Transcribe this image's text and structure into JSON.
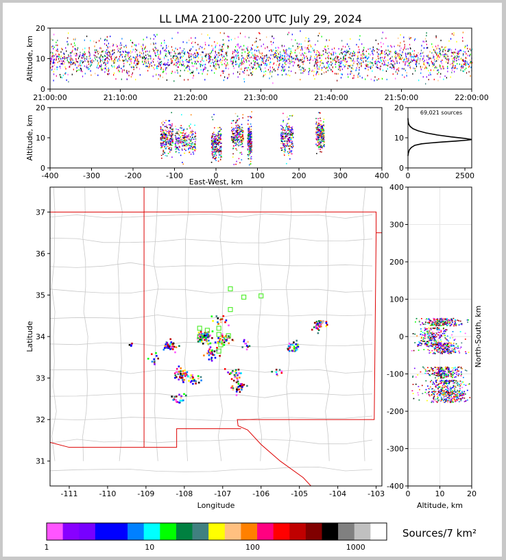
{
  "title": "LL LMA 2100-2200 UTC July 29, 2024",
  "chart_data": [
    {
      "type": "scatter",
      "panel": "altitude-vs-time",
      "ylabel": "Altitude, km",
      "ylim": [
        0,
        20
      ],
      "yticks": [
        "0",
        "10",
        "20"
      ],
      "xlim": [
        "21:00:00",
        "22:00:00"
      ],
      "xticks": [
        "21:00:00",
        "21:10:00",
        "21:20:00",
        "21:30:00",
        "21:40:00",
        "21:50:00",
        "22:00:00"
      ],
      "altitude_core_km": [
        5,
        15
      ],
      "altitude_peak_km": 10
    },
    {
      "type": "scatter",
      "panel": "altitude-vs-east-west",
      "xlabel": "East-West, km",
      "ylabel": "Altitude, km",
      "xlim": [
        -400,
        400
      ],
      "ylim": [
        0,
        20
      ],
      "xticks": [
        "-400",
        "-300",
        "-200",
        "-100",
        "0",
        "100",
        "200",
        "300",
        "400"
      ],
      "yticks": [
        "0",
        "10",
        "20"
      ],
      "clusters": [
        {
          "x_km": -120,
          "alt_km": 10,
          "halfwidth_km": 15
        },
        {
          "x_km": -75,
          "alt_km": 9,
          "halfwidth_km": 25
        },
        {
          "x_km": 0,
          "alt_km": 8,
          "halfwidth_km": 12
        },
        {
          "x_km": 50,
          "alt_km": 11,
          "halfwidth_km": 15
        },
        {
          "x_km": 80,
          "alt_km": 9,
          "halfwidth_km": 5
        },
        {
          "x_km": 170,
          "alt_km": 10,
          "halfwidth_km": 15
        },
        {
          "x_km": 250,
          "alt_km": 11,
          "halfwidth_km": 10
        }
      ]
    },
    {
      "type": "line",
      "panel": "altitude-histogram",
      "annotation": "69,021 sources",
      "xlim": [
        0,
        2800
      ],
      "ylim": [
        0,
        20
      ],
      "xticks": [
        "0",
        "2500"
      ],
      "yticks": [
        "0",
        "10",
        "20"
      ],
      "x": [
        0,
        20,
        60,
        150,
        300,
        600,
        1000,
        1500,
        2100,
        2600,
        2800,
        2500,
        1900,
        1300,
        800,
        450,
        220,
        90,
        30,
        8,
        0
      ],
      "y": [
        4,
        5,
        6,
        6.8,
        7.5,
        8,
        8.3,
        8.6,
        8.9,
        9.2,
        9.4,
        9.8,
        10.3,
        10.9,
        11.6,
        12.3,
        13,
        13.8,
        14.6,
        15.5,
        16.5
      ]
    },
    {
      "type": "scatter",
      "panel": "plan-view-map",
      "xlabel": "Longitude",
      "ylabel": "Latitude",
      "xlim": [
        -111.5,
        -102.85
      ],
      "ylim": [
        30.4,
        37.6
      ],
      "xticks": [
        "-111",
        "-110",
        "-109",
        "-108",
        "-107",
        "-106",
        "-105",
        "-104",
        "-103"
      ],
      "yticks": [
        "31",
        "32",
        "33",
        "34",
        "35",
        "36",
        "37"
      ],
      "source_clusters": [
        {
          "lon": -108.4,
          "lat": 33.8,
          "n": 40
        },
        {
          "lon": -108.1,
          "lat": 33.1,
          "n": 45
        },
        {
          "lon": -108.15,
          "lat": 32.5,
          "n": 20
        },
        {
          "lon": -107.8,
          "lat": 33.0,
          "n": 25
        },
        {
          "lon": -107.5,
          "lat": 34.0,
          "n": 90
        },
        {
          "lon": -107.3,
          "lat": 33.6,
          "n": 25
        },
        {
          "lon": -107.1,
          "lat": 34.4,
          "n": 15
        },
        {
          "lon": -107.0,
          "lat": 33.95,
          "n": 30
        },
        {
          "lon": -106.7,
          "lat": 33.1,
          "n": 25
        },
        {
          "lon": -106.6,
          "lat": 32.8,
          "n": 30
        },
        {
          "lon": -106.4,
          "lat": 33.8,
          "n": 10
        },
        {
          "lon": -105.6,
          "lat": 33.15,
          "n": 8
        },
        {
          "lon": -105.2,
          "lat": 33.75,
          "n": 35
        },
        {
          "lon": -104.5,
          "lat": 34.3,
          "n": 45
        },
        {
          "lon": -108.8,
          "lat": 33.5,
          "n": 10
        },
        {
          "lon": -109.45,
          "lat": 33.85,
          "n": 4
        }
      ],
      "stations": [
        {
          "lon": -106.8,
          "lat": 35.15
        },
        {
          "lon": -106.45,
          "lat": 34.95
        },
        {
          "lon": -106.0,
          "lat": 34.98
        },
        {
          "lon": -106.8,
          "lat": 34.65
        },
        {
          "lon": -107.1,
          "lat": 34.2
        },
        {
          "lon": -107.4,
          "lat": 34.15
        },
        {
          "lon": -107.1,
          "lat": 34.05
        },
        {
          "lon": -106.85,
          "lat": 34.02
        },
        {
          "lon": -107.05,
          "lat": 33.8
        },
        {
          "lon": -107.1,
          "lat": 33.65
        },
        {
          "lon": -107.6,
          "lat": 34.2
        },
        {
          "lon": -107.6,
          "lat": 34.0
        }
      ]
    },
    {
      "type": "scatter",
      "panel": "north-south-vs-altitude",
      "xlabel": "Altitude, km",
      "ylabel": "North-South, km",
      "xlim": [
        0,
        20
      ],
      "ylim": [
        -400,
        400
      ],
      "xticks": [
        "0",
        "10",
        "20"
      ],
      "yticks": [
        "-400",
        "-300",
        "-200",
        "-100",
        "0",
        "100",
        "200",
        "300",
        "400"
      ],
      "clusters": [
        {
          "ns_km": 40,
          "alt_km": 10,
          "spread_km": 10
        },
        {
          "ns_km": 0,
          "alt_km": 8,
          "spread_km": 25
        },
        {
          "ns_km": -30,
          "alt_km": 11,
          "spread_km": 15
        },
        {
          "ns_km": -95,
          "alt_km": 11,
          "spread_km": 15
        },
        {
          "ns_km": -135,
          "alt_km": 12,
          "spread_km": 20
        },
        {
          "ns_km": -160,
          "alt_km": 13,
          "spread_km": 15
        }
      ]
    },
    {
      "type": "heatmap",
      "panel": "colorbar",
      "label": "Sources/7 km²",
      "scale": "log",
      "range": [
        1,
        2000
      ],
      "ticks": [
        "1",
        "10",
        "100",
        "1000"
      ],
      "colors": [
        "#ff55ff",
        "#8800ff",
        "#7700ff",
        "#0000ff",
        "#0000ff",
        "#0080ff",
        "#00ffff",
        "#00ff00",
        "#008040",
        "#408080",
        "#ffff00",
        "#ffc080",
        "#ff8000",
        "#ff0080",
        "#ff0000",
        "#c00000",
        "#800000",
        "#000000",
        "#808080",
        "#c0c0c0",
        "#ffffff"
      ]
    }
  ]
}
